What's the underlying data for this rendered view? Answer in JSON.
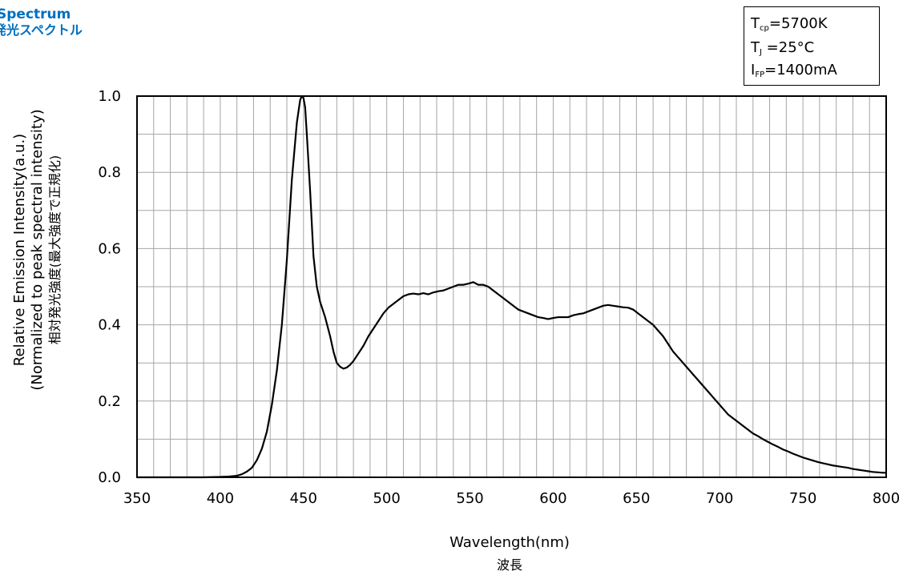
{
  "header": {
    "title_en": "Spectrum",
    "title_ja": "発光スペクトル"
  },
  "conditions": [
    {
      "symbol": "T",
      "subscript": "cp",
      "value": "=5700K"
    },
    {
      "symbol": "T",
      "subscript": "J",
      "value": " =25°C"
    },
    {
      "symbol": "I",
      "subscript": "FP",
      "value": "=1400mA"
    }
  ],
  "chart_data": {
    "type": "line",
    "title": "",
    "xlabel": "Wavelength(nm)",
    "xlabel_ja": "波長",
    "ylabel_lines": [
      "Relative Emission Intensity(a.u.)",
      "(Normalized to peak spectral intensity)",
      "相対発光強度(最大強度で正規化)"
    ],
    "xlim": [
      350,
      800
    ],
    "ylim": [
      0,
      1.0
    ],
    "x_ticks": [
      350,
      400,
      450,
      500,
      550,
      600,
      650,
      700,
      750,
      800
    ],
    "x_tick_labels": [
      "350",
      "400",
      "450",
      "500",
      "550",
      "600",
      "650",
      "700",
      "750",
      "800"
    ],
    "y_ticks": [
      0,
      0.2,
      0.4,
      0.6,
      0.8,
      1.0
    ],
    "y_tick_labels": [
      "0.0",
      "0.2",
      "0.4",
      "0.6",
      "0.8",
      "1.0"
    ],
    "x_minor_step": 10,
    "y_minor_step": 0.1,
    "grid": true,
    "line_color": "#000000",
    "series": [
      {
        "x": [
          350,
          360,
          370,
          380,
          390,
          400,
          405,
          410,
          413,
          416,
          419,
          422,
          425,
          428,
          431,
          434,
          437,
          440,
          443,
          446,
          448,
          449,
          450,
          451,
          452,
          454,
          456,
          458,
          460,
          463,
          466,
          468,
          470,
          472,
          474,
          476,
          478,
          480,
          483,
          486,
          489,
          492,
          495,
          498,
          501,
          504,
          507,
          510,
          513,
          516,
          519,
          522,
          525,
          528,
          531,
          534,
          537,
          540,
          543,
          546,
          549,
          552,
          555,
          558,
          561,
          564,
          567,
          570,
          573,
          576,
          579,
          582,
          585,
          588,
          591,
          594,
          597,
          600,
          603,
          606,
          609,
          612,
          615,
          618,
          621,
          624,
          627,
          630,
          633,
          636,
          639,
          642,
          645,
          648,
          651,
          654,
          657,
          660,
          663,
          666,
          669,
          672,
          675,
          678,
          681,
          684,
          687,
          690,
          693,
          696,
          699,
          702,
          705,
          708,
          711,
          714,
          717,
          720,
          723,
          726,
          729,
          732,
          735,
          738,
          741,
          744,
          747,
          750,
          753,
          756,
          759,
          762,
          765,
          768,
          771,
          774,
          777,
          780,
          783,
          786,
          789,
          792,
          795,
          798,
          800
        ],
        "y": [
          0.0,
          0.0,
          0.0,
          0.0,
          0.0,
          0.001,
          0.002,
          0.004,
          0.008,
          0.015,
          0.025,
          0.045,
          0.075,
          0.12,
          0.19,
          0.28,
          0.4,
          0.57,
          0.78,
          0.93,
          0.99,
          1.0,
          0.995,
          0.97,
          0.9,
          0.75,
          0.58,
          0.5,
          0.46,
          0.42,
          0.37,
          0.33,
          0.3,
          0.29,
          0.285,
          0.288,
          0.295,
          0.305,
          0.325,
          0.345,
          0.37,
          0.39,
          0.41,
          0.43,
          0.445,
          0.455,
          0.465,
          0.475,
          0.48,
          0.482,
          0.48,
          0.483,
          0.48,
          0.485,
          0.488,
          0.49,
          0.495,
          0.5,
          0.505,
          0.505,
          0.508,
          0.512,
          0.505,
          0.505,
          0.5,
          0.49,
          0.48,
          0.47,
          0.46,
          0.45,
          0.44,
          0.435,
          0.43,
          0.425,
          0.42,
          0.418,
          0.415,
          0.418,
          0.42,
          0.42,
          0.42,
          0.425,
          0.428,
          0.43,
          0.435,
          0.44,
          0.445,
          0.45,
          0.452,
          0.45,
          0.448,
          0.446,
          0.445,
          0.44,
          0.43,
          0.42,
          0.41,
          0.4,
          0.385,
          0.37,
          0.35,
          0.33,
          0.315,
          0.3,
          0.285,
          0.27,
          0.255,
          0.24,
          0.225,
          0.21,
          0.195,
          0.18,
          0.165,
          0.155,
          0.145,
          0.135,
          0.125,
          0.115,
          0.108,
          0.1,
          0.093,
          0.086,
          0.08,
          0.073,
          0.068,
          0.062,
          0.057,
          0.052,
          0.048,
          0.044,
          0.04,
          0.037,
          0.034,
          0.031,
          0.029,
          0.027,
          0.025,
          0.022,
          0.02,
          0.018,
          0.016,
          0.014,
          0.013,
          0.012,
          0.012
        ]
      }
    ]
  }
}
